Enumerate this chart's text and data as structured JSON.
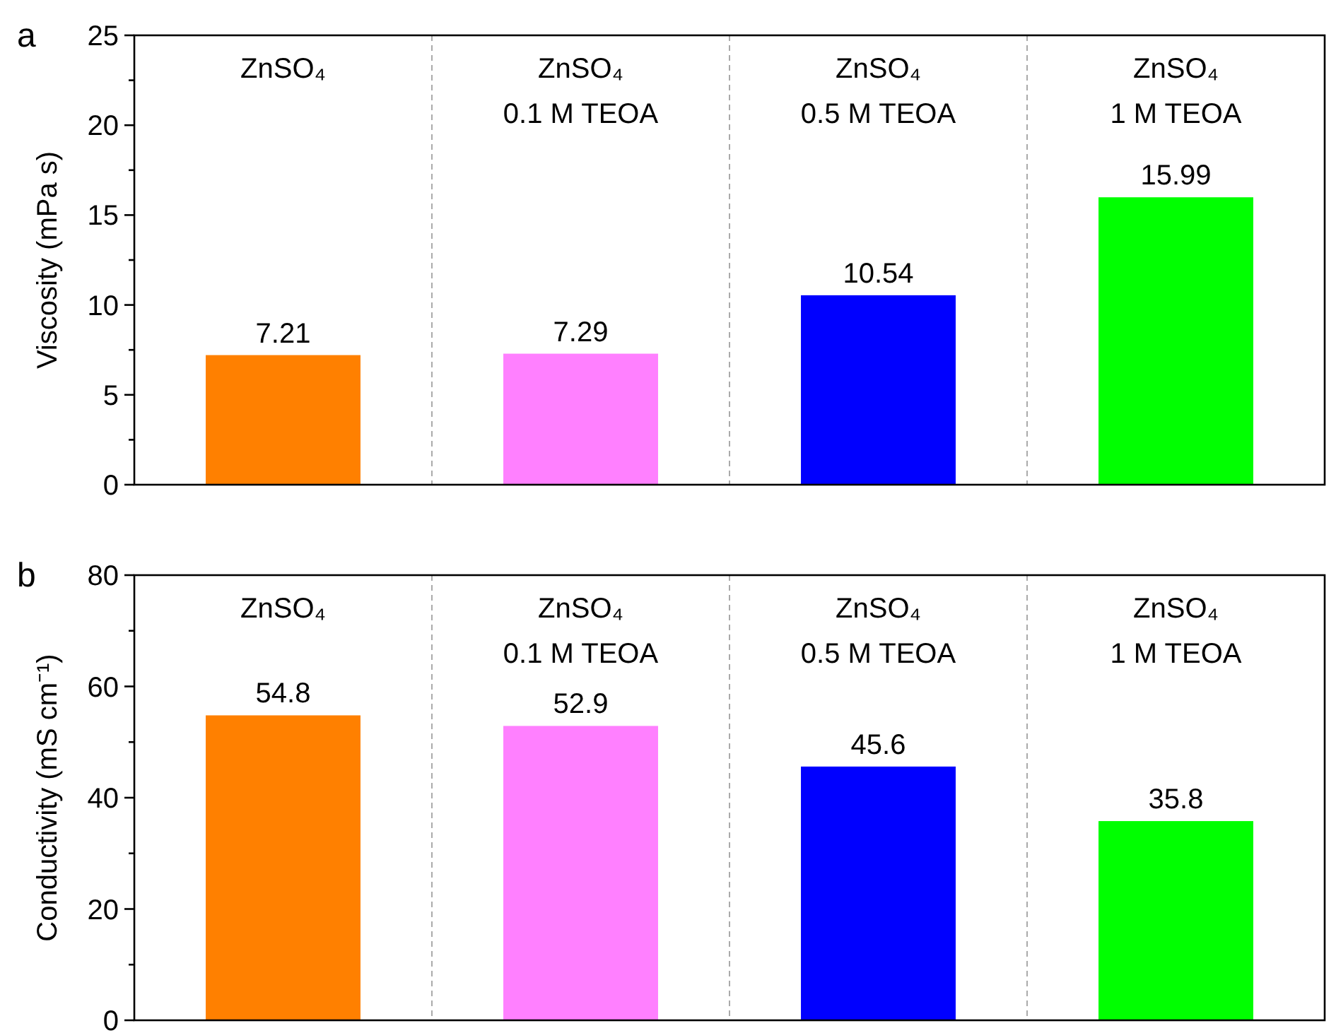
{
  "chart_data": [
    {
      "type": "bar",
      "title": "a",
      "ylabel": "Viscosity (mPa s)",
      "categories": [
        "ZnSO₄",
        "ZnSO₄\n0.1 M TEOA",
        "ZnSO₄\n0.5 M TEOA",
        "ZnSO₄\n1 M TEOA"
      ],
      "values": [
        7.21,
        7.29,
        10.54,
        15.99
      ],
      "colors": [
        "#ff8000",
        "#ff80ff",
        "#0000ff",
        "#00ff00"
      ],
      "ylim": [
        0,
        25
      ],
      "yticks": [
        0,
        {
          "value": 2.5,
          "label": null
        },
        5,
        {
          "value": 7.5,
          "label": null
        },
        10,
        {
          "value": 12.5,
          "label": null
        },
        15,
        {
          "value": 17.5,
          "label": null
        },
        20,
        {
          "value": 22.5,
          "label": null
        },
        25
      ],
      "data_labels": true
    },
    {
      "type": "bar",
      "title": "b",
      "ylabel": "Conductivity (mS cm⁻¹)",
      "categories": [
        "ZnSO₄",
        "ZnSO₄\n0.1 M TEOA",
        "ZnSO₄\n0.5 M TEOA",
        "ZnSO₄\n1 M TEOA"
      ],
      "values": [
        54.8,
        52.9,
        45.6,
        35.8
      ],
      "colors": [
        "#ff8000",
        "#ff80ff",
        "#0000ff",
        "#00ff00"
      ],
      "ylim": [
        0,
        80
      ],
      "yticks": [
        0,
        {
          "value": 10,
          "label": null
        },
        20,
        {
          "value": 30,
          "label": null
        },
        40,
        {
          "value": 50,
          "label": null
        },
        60,
        {
          "value": 70,
          "label": null
        },
        80
      ],
      "data_labels": true
    }
  ]
}
